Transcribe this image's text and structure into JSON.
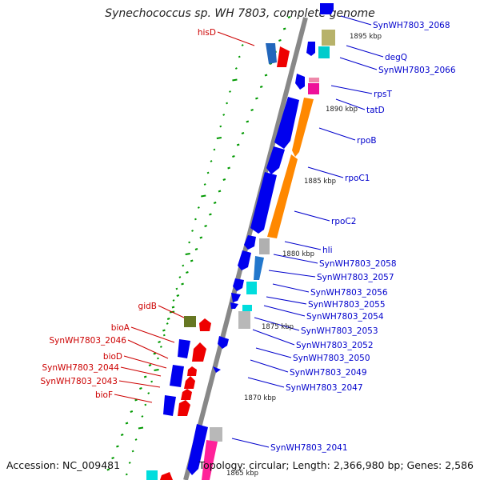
{
  "title": "Synechococcus sp. WH 7803, complete genome",
  "accession": "Accession: NC_009481",
  "summary": "Topology: circular; Length: 2,366,980 bp; Genes: 2,586",
  "colors": {
    "forward_gene": "#0000ee",
    "reverse_gene": "#ee0000",
    "backbone": "#808080",
    "tick": "#009900",
    "label_forward": "#0000cc",
    "label_reverse": "#cc0000"
  },
  "kbp_marks": [
    "1895 kbp",
    "1890 kbp",
    "1885 kbp",
    "1880 kbp",
    "1875 kbp",
    "1870 kbp",
    "1865 kbp"
  ],
  "genes_forward": [
    "SynWH7803_2068",
    "degQ",
    "SynWH7803_2066",
    "rpsT",
    "tatD",
    "rpoB",
    "rpoC1",
    "rpoC2",
    "hli",
    "SynWH7803_2058",
    "SynWH7803_2057",
    "SynWH7803_2056",
    "SynWH7803_2055",
    "SynWH7803_2054",
    "SynWH7803_2053",
    "SynWH7803_2052",
    "SynWH7803_2050",
    "SynWH7803_2049",
    "SynWH7803_2047",
    "SynWH7803_2041"
  ],
  "genes_reverse": [
    "hisD",
    "gidB",
    "bioA",
    "SynWH7803_2046",
    "bioD",
    "SynWH7803_2044",
    "SynWH7803_2043",
    "bioF"
  ]
}
